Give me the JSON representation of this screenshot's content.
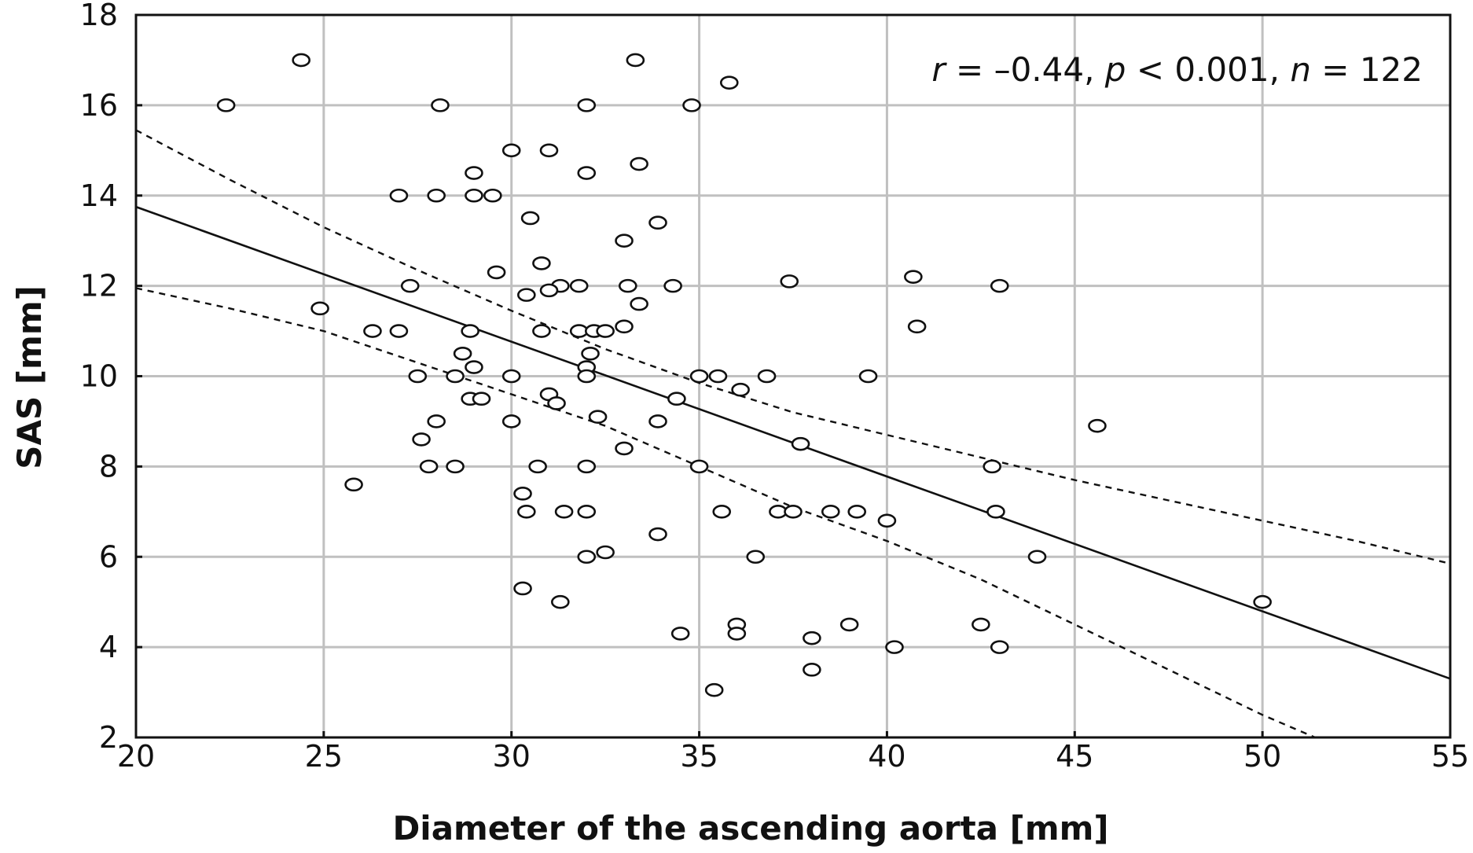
{
  "chart_data": {
    "type": "scatter",
    "xlabel": "Diameter of the ascending aorta [mm]",
    "ylabel": "SAS [mm]",
    "xlim": [
      20,
      55
    ],
    "ylim": [
      2,
      18
    ],
    "xticks": [
      20,
      25,
      30,
      35,
      40,
      45,
      50,
      55
    ],
    "yticks": [
      2,
      4,
      6,
      8,
      10,
      12,
      14,
      16,
      18
    ],
    "grid": true,
    "annotation": {
      "r_label": "r",
      "r_value": " = –0.44, ",
      "p_label": "p",
      "p_value": " < 0.001, ",
      "n_label": "n",
      "n_value": " = 122"
    },
    "points": [
      {
        "x": 22.4,
        "y": 16.0
      },
      {
        "x": 24.4,
        "y": 17.0
      },
      {
        "x": 28.1,
        "y": 16.0
      },
      {
        "x": 33.3,
        "y": 17.0
      },
      {
        "x": 34.8,
        "y": 16.0
      },
      {
        "x": 35.8,
        "y": 16.5
      },
      {
        "x": 32.0,
        "y": 16.0
      },
      {
        "x": 30.0,
        "y": 15.0
      },
      {
        "x": 31.0,
        "y": 15.0
      },
      {
        "x": 29.0,
        "y": 14.5
      },
      {
        "x": 32.0,
        "y": 14.5
      },
      {
        "x": 33.4,
        "y": 14.7
      },
      {
        "x": 27.0,
        "y": 14.0
      },
      {
        "x": 28.0,
        "y": 14.0
      },
      {
        "x": 29.0,
        "y": 14.0
      },
      {
        "x": 29.5,
        "y": 14.0
      },
      {
        "x": 30.5,
        "y": 13.5
      },
      {
        "x": 33.9,
        "y": 13.4
      },
      {
        "x": 33.0,
        "y": 13.0
      },
      {
        "x": 30.8,
        "y": 12.5
      },
      {
        "x": 29.6,
        "y": 12.3
      },
      {
        "x": 27.3,
        "y": 12.0
      },
      {
        "x": 31.3,
        "y": 12.0
      },
      {
        "x": 31.8,
        "y": 12.0
      },
      {
        "x": 33.1,
        "y": 12.0
      },
      {
        "x": 34.3,
        "y": 12.0
      },
      {
        "x": 37.4,
        "y": 12.1
      },
      {
        "x": 40.7,
        "y": 12.2
      },
      {
        "x": 43.0,
        "y": 12.0
      },
      {
        "x": 30.4,
        "y": 11.8
      },
      {
        "x": 31.0,
        "y": 11.9
      },
      {
        "x": 33.4,
        "y": 11.6
      },
      {
        "x": 24.9,
        "y": 11.5
      },
      {
        "x": 33.0,
        "y": 11.1
      },
      {
        "x": 40.8,
        "y": 11.1
      },
      {
        "x": 26.3,
        "y": 11.0
      },
      {
        "x": 27.0,
        "y": 11.0
      },
      {
        "x": 28.9,
        "y": 11.0
      },
      {
        "x": 30.8,
        "y": 11.0
      },
      {
        "x": 31.8,
        "y": 11.0
      },
      {
        "x": 32.2,
        "y": 11.0
      },
      {
        "x": 32.5,
        "y": 11.0
      },
      {
        "x": 28.7,
        "y": 10.5
      },
      {
        "x": 32.1,
        "y": 10.5
      },
      {
        "x": 29.0,
        "y": 10.2
      },
      {
        "x": 32.0,
        "y": 10.2
      },
      {
        "x": 27.5,
        "y": 10.0
      },
      {
        "x": 28.5,
        "y": 10.0
      },
      {
        "x": 30.0,
        "y": 10.0
      },
      {
        "x": 32.0,
        "y": 10.0
      },
      {
        "x": 35.0,
        "y": 10.0
      },
      {
        "x": 35.5,
        "y": 10.0
      },
      {
        "x": 36.8,
        "y": 10.0
      },
      {
        "x": 39.5,
        "y": 10.0
      },
      {
        "x": 36.1,
        "y": 9.7
      },
      {
        "x": 31.0,
        "y": 9.6
      },
      {
        "x": 28.9,
        "y": 9.5
      },
      {
        "x": 29.2,
        "y": 9.5
      },
      {
        "x": 34.4,
        "y": 9.5
      },
      {
        "x": 31.2,
        "y": 9.4
      },
      {
        "x": 32.3,
        "y": 9.1
      },
      {
        "x": 28.0,
        "y": 9.0
      },
      {
        "x": 30.0,
        "y": 9.0
      },
      {
        "x": 33.9,
        "y": 9.0
      },
      {
        "x": 45.6,
        "y": 8.9
      },
      {
        "x": 27.6,
        "y": 8.6
      },
      {
        "x": 37.7,
        "y": 8.5
      },
      {
        "x": 33.0,
        "y": 8.4
      },
      {
        "x": 27.8,
        "y": 8.0
      },
      {
        "x": 28.5,
        "y": 8.0
      },
      {
        "x": 30.7,
        "y": 8.0
      },
      {
        "x": 32.0,
        "y": 8.0
      },
      {
        "x": 35.0,
        "y": 8.0
      },
      {
        "x": 42.8,
        "y": 8.0
      },
      {
        "x": 25.8,
        "y": 7.6
      },
      {
        "x": 30.3,
        "y": 7.4
      },
      {
        "x": 30.4,
        "y": 7.0
      },
      {
        "x": 31.4,
        "y": 7.0
      },
      {
        "x": 32.0,
        "y": 7.0
      },
      {
        "x": 35.6,
        "y": 7.0
      },
      {
        "x": 37.1,
        "y": 7.0
      },
      {
        "x": 37.5,
        "y": 7.0
      },
      {
        "x": 38.5,
        "y": 7.0
      },
      {
        "x": 39.2,
        "y": 7.0
      },
      {
        "x": 42.9,
        "y": 7.0
      },
      {
        "x": 40.0,
        "y": 6.8
      },
      {
        "x": 33.9,
        "y": 6.5
      },
      {
        "x": 32.5,
        "y": 6.1
      },
      {
        "x": 32.0,
        "y": 6.0
      },
      {
        "x": 36.5,
        "y": 6.0
      },
      {
        "x": 44.0,
        "y": 6.0
      },
      {
        "x": 30.3,
        "y": 5.3
      },
      {
        "x": 31.3,
        "y": 5.0
      },
      {
        "x": 50.0,
        "y": 5.0
      },
      {
        "x": 36.0,
        "y": 4.5
      },
      {
        "x": 39.0,
        "y": 4.5
      },
      {
        "x": 42.5,
        "y": 4.5
      },
      {
        "x": 34.5,
        "y": 4.3
      },
      {
        "x": 36.0,
        "y": 4.3
      },
      {
        "x": 38.0,
        "y": 4.2
      },
      {
        "x": 40.2,
        "y": 4.0
      },
      {
        "x": 43.0,
        "y": 4.0
      },
      {
        "x": 38.0,
        "y": 3.5
      },
      {
        "x": 35.4,
        "y": 3.05
      }
    ],
    "fit_line": {
      "x": [
        20,
        55
      ],
      "y": [
        13.75,
        3.3
      ]
    },
    "ci_upper": {
      "x": [
        20,
        22.5,
        25,
        27.5,
        30,
        32.5,
        35,
        37.5,
        40,
        42.5,
        45,
        47.5,
        50,
        52.5,
        55
      ],
      "y": [
        15.45,
        14.35,
        13.3,
        12.35,
        11.45,
        10.6,
        9.85,
        9.2,
        8.7,
        8.2,
        7.7,
        7.25,
        6.8,
        6.35,
        5.85
      ]
    },
    "ci_lower": {
      "x": [
        20,
        22.5,
        25,
        27.5,
        30,
        32.5,
        35,
        37.5,
        40,
        42.5,
        45,
        47.5,
        50,
        51.4
      ],
      "y": [
        11.95,
        11.5,
        11.0,
        10.3,
        9.6,
        8.9,
        8.0,
        7.1,
        6.35,
        5.5,
        4.5,
        3.5,
        2.5,
        2.0
      ]
    }
  }
}
